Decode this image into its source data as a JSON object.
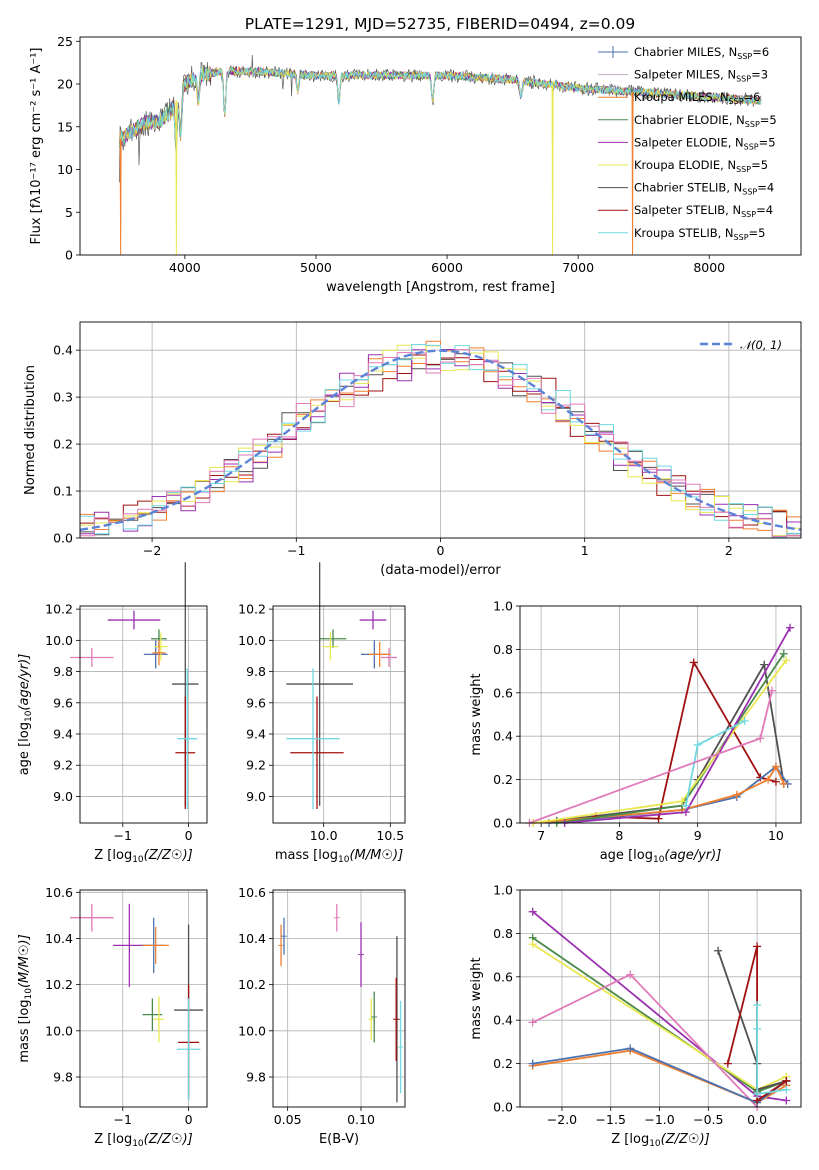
{
  "figure_title": "PLATE=1291, MJD=52735, FIBERID=0494, z=0.09",
  "colors": [
    "#4c72b0",
    "#c8a8c8",
    "#f08030",
    "#4a8a4a",
    "#9b30b0",
    "#e8e850",
    "#505050",
    "#a01010",
    "#70d8e0"
  ],
  "chart_data": [
    {
      "id": "spectrum",
      "type": "line",
      "title": "PLATE=1291, MJD=52735, FIBERID=0494, z=0.09",
      "xlabel": "wavelength [Angstrom, rest frame]",
      "ylabel": "Flux [f_λ10^-17 erg cm^-2 s^-1 A^-1]",
      "xlim": [
        3200,
        8700
      ],
      "ylim": [
        0,
        25.5
      ],
      "x_ticks": [
        "4000",
        "5000",
        "6000",
        "7000",
        "8000"
      ],
      "y_ticks": [
        "0",
        "5",
        "10",
        "15",
        "20",
        "25"
      ],
      "grid": false,
      "legend": "upper right",
      "series": [
        {
          "name": "Chabrier MILES, N_SSP=6",
          "color": "#4c72b0"
        },
        {
          "name": "Salpeter MILES, N_SSP=3",
          "color": "#c8a8c8"
        },
        {
          "name": "Kroupa MILES, N_SSP=6",
          "color": "#f08030"
        },
        {
          "name": "Chabrier ELODIE, N_SSP=5",
          "color": "#4a8a4a"
        },
        {
          "name": "Salpeter ELODIE, N_SSP=5",
          "color": "#9b30b0"
        },
        {
          "name": "Kroupa ELODIE, N_SSP=5",
          "color": "#e8e850"
        },
        {
          "name": "Chabrier STELIB, N_SSP=4",
          "color": "#505050"
        },
        {
          "name": "Salpeter STELIB, N_SSP=4",
          "color": "#a01010"
        },
        {
          "name": "Kroupa STELIB, N_SSP=5",
          "color": "#70d8e0"
        }
      ],
      "continuum": {
        "x": [
          3500,
          3600,
          3700,
          3800,
          3900,
          4000,
          4100,
          4300,
          4500,
          5000,
          5500,
          6000,
          6500,
          7000,
          7500,
          8000,
          8400
        ],
        "y": [
          13.5,
          14.5,
          15.5,
          15.5,
          17,
          20,
          21,
          21.5,
          21.5,
          21,
          21,
          21,
          20.5,
          19.5,
          19,
          18.5,
          18
        ]
      },
      "absorptions": [
        {
          "x": 3934,
          "depth": 5
        },
        {
          "x": 3968,
          "depth": 5
        },
        {
          "x": 4102,
          "depth": 3
        },
        {
          "x": 4304,
          "depth": 5
        },
        {
          "x": 4861,
          "depth": 2
        },
        {
          "x": 5175,
          "depth": 3
        },
        {
          "x": 5890,
          "depth": 3
        },
        {
          "x": 6563,
          "depth": 2
        }
      ],
      "drops_to_zero": [
        {
          "x": 3510,
          "color": "#f08030"
        },
        {
          "x": 3935,
          "color": "#e8e850"
        },
        {
          "x": 6805,
          "color": "#e8e850"
        },
        {
          "x": 7415,
          "color": "#f08030"
        }
      ]
    },
    {
      "id": "residuals",
      "type": "line",
      "xlabel": "(data-model)/error",
      "ylabel": "Normed distribution",
      "xlim": [
        -2.5,
        2.5
      ],
      "ylim": [
        0,
        0.46
      ],
      "x_ticks": [
        "−2",
        "−1",
        "0",
        "1",
        "2"
      ],
      "y_ticks": [
        "0.0",
        "0.1",
        "0.2",
        "0.3",
        "0.4"
      ],
      "grid": true,
      "legend": "upper right",
      "gaussian_label": "𝒩(0, 1)",
      "gaussian_color": "#5b84d6",
      "bin_width": 0.1,
      "hist_series": [
        {
          "color": "#505050",
          "offset": 0.012
        },
        {
          "color": "#a01010",
          "offset": 0.018
        },
        {
          "color": "#f08030",
          "offset": 0.015
        },
        {
          "color": "#9b30b0",
          "offset": 0.02
        },
        {
          "color": "#e8e850",
          "offset": 0.017
        },
        {
          "color": "#70d8e0",
          "offset": 0.016
        },
        {
          "color": "#e07ab8",
          "offset": 0.019
        }
      ]
    },
    {
      "id": "age-vs-Z",
      "type": "scatter",
      "xlabel": "Z [log10(Z/Z☉)]",
      "ylabel": "age  [log10(age/yr)]",
      "xlim": [
        -1.65,
        0.28
      ],
      "ylim": [
        8.83,
        10.22
      ],
      "x_ticks": [
        {
          "v": -1,
          "t": "−1"
        },
        {
          "v": 0,
          "t": "0"
        }
      ],
      "y_ticks": [
        {
          "v": 9.0,
          "t": "9.0"
        },
        {
          "v": 9.2,
          "t": "9.2"
        },
        {
          "v": 9.4,
          "t": "9.4"
        },
        {
          "v": 9.6,
          "t": "9.6"
        },
        {
          "v": 9.8,
          "t": "9.8"
        },
        {
          "v": 10.0,
          "t": "10.0"
        },
        {
          "v": 10.2,
          "t": "10.2"
        }
      ],
      "points": [
        {
          "x": -1.47,
          "y": 9.89,
          "xerr": 0.33,
          "yerr": 0.06,
          "color": "#e07ab8"
        },
        {
          "x": -0.83,
          "y": 10.13,
          "xerr": 0.4,
          "yerr": 0.06,
          "color": "#9b30b0"
        },
        {
          "x": -0.5,
          "y": 9.91,
          "xerr": 0.18,
          "yerr": 0.09,
          "color": "#4c72b0"
        },
        {
          "x": -0.45,
          "y": 10.01,
          "xerr": 0.12,
          "yerr": 0.06,
          "color": "#4a8a4a"
        },
        {
          "x": -0.42,
          "y": 9.96,
          "xerr": 0.1,
          "yerr": 0.09,
          "color": "#e8e850"
        },
        {
          "x": -0.45,
          "y": 9.92,
          "xerr": 0.1,
          "yerr": 0.08,
          "color": "#f08030"
        },
        {
          "x": -0.05,
          "y": 9.72,
          "xerr": 0.2,
          "yerr": 0.78,
          "color": "#505050"
        },
        {
          "x": -0.05,
          "y": 9.28,
          "xerr": 0.15,
          "yerr": 0.36,
          "color": "#a01010"
        },
        {
          "x": -0.02,
          "y": 9.37,
          "xerr": 0.15,
          "yerr": 0.45,
          "color": "#70d8e0"
        }
      ]
    },
    {
      "id": "age-vs-mass",
      "type": "scatter",
      "xlabel": "mass [log10(M/M☉)]",
      "ylabel": "",
      "xlim": [
        9.62,
        10.61
      ],
      "ylim": [
        8.83,
        10.22
      ],
      "x_ticks": [
        {
          "v": 10.0,
          "t": "10.0"
        },
        {
          "v": 10.5,
          "t": "10.5"
        }
      ],
      "y_ticks": [
        {
          "v": 9.0,
          "t": "9.0"
        },
        {
          "v": 9.2,
          "t": "9.2"
        },
        {
          "v": 9.4,
          "t": "9.4"
        },
        {
          "v": 9.6,
          "t": "9.6"
        },
        {
          "v": 9.8,
          "t": "9.8"
        },
        {
          "v": 10.0,
          "t": "10.0"
        },
        {
          "v": 10.2,
          "t": "10.2"
        }
      ],
      "points": [
        {
          "x": 10.49,
          "y": 9.89,
          "xerr": 0.06,
          "yerr": 0.06,
          "color": "#e07ab8"
        },
        {
          "x": 10.37,
          "y": 10.13,
          "xerr": 0.1,
          "yerr": 0.06,
          "color": "#9b30b0"
        },
        {
          "x": 10.38,
          "y": 9.91,
          "xerr": 0.1,
          "yerr": 0.09,
          "color": "#4c72b0"
        },
        {
          "x": 10.07,
          "y": 10.01,
          "xerr": 0.1,
          "yerr": 0.06,
          "color": "#4a8a4a"
        },
        {
          "x": 10.05,
          "y": 9.96,
          "xerr": 0.06,
          "yerr": 0.09,
          "color": "#e8e850"
        },
        {
          "x": 10.42,
          "y": 9.91,
          "xerr": 0.08,
          "yerr": 0.08,
          "color": "#f08030"
        },
        {
          "x": 9.97,
          "y": 9.72,
          "xerr": 0.25,
          "yerr": 0.78,
          "color": "#505050"
        },
        {
          "x": 9.95,
          "y": 9.28,
          "xerr": 0.2,
          "yerr": 0.36,
          "color": "#a01010"
        },
        {
          "x": 9.92,
          "y": 9.37,
          "xerr": 0.2,
          "yerr": 0.45,
          "color": "#70d8e0"
        }
      ]
    },
    {
      "id": "massweight-vs-age",
      "type": "line",
      "xlabel": "age  [log10(age/yr)]",
      "ylabel": "mass weight",
      "xlim": [
        6.73,
        10.32
      ],
      "ylim": [
        0,
        1
      ],
      "x_ticks": [
        {
          "v": 7,
          "t": "7"
        },
        {
          "v": 8,
          "t": "8"
        },
        {
          "v": 9,
          "t": "9"
        },
        {
          "v": 10,
          "t": "10"
        }
      ],
      "y_ticks": [
        {
          "v": 0,
          "t": "0.0"
        },
        {
          "v": 0.2,
          "t": "0.2"
        },
        {
          "v": 0.4,
          "t": "0.4"
        },
        {
          "v": 0.6,
          "t": "0.6"
        },
        {
          "v": 0.8,
          "t": "0.8"
        },
        {
          "v": 1.0,
          "t": "1.0"
        }
      ],
      "series": [
        {
          "color": "#505050",
          "x": [
            7.2,
            8.8,
            9.0,
            9.85,
            10.1
          ],
          "y": [
            0.01,
            0.08,
            0.2,
            0.73,
            0.18
          ]
        },
        {
          "color": "#a01010",
          "x": [
            7.7,
            8.5,
            8.95,
            9.8,
            10.0
          ],
          "y": [
            0.03,
            0.02,
            0.74,
            0.21,
            0.19
          ]
        },
        {
          "color": "#4c72b0",
          "x": [
            7.1,
            8.8,
            9.5,
            10.0,
            10.15
          ],
          "y": [
            0.0,
            0.06,
            0.12,
            0.26,
            0.18
          ]
        },
        {
          "color": "#f08030",
          "x": [
            6.9,
            8.8,
            9.5,
            9.9,
            10.0,
            10.1
          ],
          "y": [
            0.0,
            0.06,
            0.13,
            0.2,
            0.26,
            0.18
          ]
        },
        {
          "color": "#4a8a4a",
          "x": [
            7.2,
            8.8,
            10.1
          ],
          "y": [
            0.0,
            0.08,
            0.78
          ]
        },
        {
          "color": "#e8e850",
          "x": [
            6.9,
            8.8,
            10.13
          ],
          "y": [
            0.0,
            0.1,
            0.75
          ]
        },
        {
          "color": "#9b30b0",
          "x": [
            7.3,
            8.85,
            10.18
          ],
          "y": [
            0.0,
            0.05,
            0.9
          ]
        },
        {
          "color": "#70d8e0",
          "x": [
            8.85,
            9.0,
            9.6
          ],
          "y": [
            0.08,
            0.36,
            0.47
          ]
        },
        {
          "color": "#e07ab8",
          "x": [
            6.85,
            9.8,
            9.95
          ],
          "y": [
            0.0,
            0.39,
            0.61
          ]
        }
      ]
    },
    {
      "id": "mass-vs-Z",
      "type": "scatter",
      "xlabel": "Z [log10(Z/Z☉)]",
      "ylabel": "mass [log10(M/M☉)]",
      "xlim": [
        -1.65,
        0.28
      ],
      "ylim": [
        9.67,
        10.61
      ],
      "x_ticks": [
        {
          "v": -1,
          "t": "−1"
        },
        {
          "v": 0,
          "t": "0"
        }
      ],
      "y_ticks": [
        {
          "v": 9.8,
          "t": "9.8"
        },
        {
          "v": 10.0,
          "t": "10.0"
        },
        {
          "v": 10.2,
          "t": "10.2"
        },
        {
          "v": 10.4,
          "t": "10.4"
        },
        {
          "v": 10.6,
          "t": "10.6"
        }
      ],
      "points": [
        {
          "x": -1.47,
          "y": 10.49,
          "xerr": 0.33,
          "yerr": 0.06,
          "color": "#e07ab8"
        },
        {
          "x": -0.9,
          "y": 10.37,
          "xerr": 0.25,
          "yerr": 0.18,
          "color": "#9b30b0"
        },
        {
          "x": -0.53,
          "y": 10.37,
          "xerr": 0.18,
          "yerr": 0.12,
          "color": "#4c72b0"
        },
        {
          "x": -0.55,
          "y": 10.07,
          "xerr": 0.15,
          "yerr": 0.07,
          "color": "#4a8a4a"
        },
        {
          "x": -0.45,
          "y": 10.05,
          "xerr": 0.08,
          "yerr": 0.1,
          "color": "#e8e850"
        },
        {
          "x": -0.5,
          "y": 10.37,
          "xerr": 0.2,
          "yerr": 0.08,
          "color": "#f08030"
        },
        {
          "x": 0.0,
          "y": 10.09,
          "xerr": 0.22,
          "yerr": 0.37,
          "color": "#505050"
        },
        {
          "x": 0.0,
          "y": 9.95,
          "xerr": 0.16,
          "yerr": 0.25,
          "color": "#a01010"
        },
        {
          "x": 0.0,
          "y": 9.92,
          "xerr": 0.18,
          "yerr": 0.22,
          "color": "#70d8e0"
        }
      ]
    },
    {
      "id": "mass-vs-EBV",
      "type": "scatter",
      "xlabel": "E(B-V)",
      "ylabel": "",
      "xlim": [
        0.04,
        0.13
      ],
      "ylim": [
        9.67,
        10.61
      ],
      "x_ticks": [
        {
          "v": 0.05,
          "t": "0.05"
        },
        {
          "v": 0.1,
          "t": "0.10"
        }
      ],
      "y_ticks": [
        {
          "v": 9.8,
          "t": "9.8"
        },
        {
          "v": 10.0,
          "t": "10.0"
        },
        {
          "v": 10.2,
          "t": "10.2"
        },
        {
          "v": 10.4,
          "t": "10.4"
        },
        {
          "v": 10.6,
          "t": "10.6"
        }
      ],
      "points": [
        {
          "x": 0.0455,
          "y": 10.37,
          "xerr": 0.0,
          "yerr": 0.09,
          "color": "#f08030"
        },
        {
          "x": 0.0475,
          "y": 10.41,
          "xerr": 0.0,
          "yerr": 0.08,
          "color": "#4c72b0"
        },
        {
          "x": 0.0835,
          "y": 10.49,
          "xerr": 0.0,
          "yerr": 0.06,
          "color": "#e07ab8"
        },
        {
          "x": 0.1,
          "y": 10.33,
          "xerr": 0.0,
          "yerr": 0.14,
          "color": "#9b30b0"
        },
        {
          "x": 0.107,
          "y": 10.05,
          "xerr": 0.0,
          "yerr": 0.09,
          "color": "#e8e850"
        },
        {
          "x": 0.109,
          "y": 10.06,
          "xerr": 0.0,
          "yerr": 0.11,
          "color": "#4a8a4a"
        },
        {
          "x": 0.1245,
          "y": 10.05,
          "xerr": 0.0,
          "yerr": 0.36,
          "color": "#505050"
        },
        {
          "x": 0.124,
          "y": 10.05,
          "xerr": 0.0,
          "yerr": 0.18,
          "color": "#a01010"
        },
        {
          "x": 0.127,
          "y": 9.93,
          "xerr": 0.0,
          "yerr": 0.2,
          "color": "#70d8e0"
        }
      ]
    },
    {
      "id": "massweight-vs-Z",
      "type": "line",
      "xlabel": "Z [log10(Z/Z☉)]",
      "ylabel": "mass weight",
      "xlim": [
        -2.43,
        0.45
      ],
      "ylim": [
        0,
        1
      ],
      "x_ticks": [
        {
          "v": -2.0,
          "t": "−2.0"
        },
        {
          "v": -1.5,
          "t": "−1.5"
        },
        {
          "v": -1.0,
          "t": "−1.0"
        },
        {
          "v": -0.5,
          "t": "−0.5"
        },
        {
          "v": 0.0,
          "t": "0.0"
        }
      ],
      "y_ticks": [
        {
          "v": 0,
          "t": "0.0"
        },
        {
          "v": 0.2,
          "t": "0.2"
        },
        {
          "v": 0.4,
          "t": "0.4"
        },
        {
          "v": 0.6,
          "t": "0.6"
        },
        {
          "v": 0.8,
          "t": "0.8"
        },
        {
          "v": 1.0,
          "t": "1.0"
        }
      ],
      "series": [
        {
          "color": "#9b30b0",
          "x": [
            -2.3,
            0.0,
            0.3
          ],
          "y": [
            0.9,
            0.05,
            0.03
          ]
        },
        {
          "color": "#4a8a4a",
          "x": [
            -2.3,
            0.0,
            0.3
          ],
          "y": [
            0.78,
            0.07,
            0.12
          ]
        },
        {
          "color": "#e8e850",
          "x": [
            -2.3,
            0.0,
            0.3
          ],
          "y": [
            0.75,
            0.08,
            0.14
          ]
        },
        {
          "color": "#e07ab8",
          "x": [
            -2.3,
            -1.3,
            0.0
          ],
          "y": [
            0.39,
            0.61,
            0.0
          ]
        },
        {
          "color": "#f08030",
          "x": [
            -2.3,
            -1.3,
            0.0,
            0.3
          ],
          "y": [
            0.19,
            0.26,
            0.02,
            0.1
          ]
        },
        {
          "color": "#4c72b0",
          "x": [
            -2.3,
            -1.3,
            0.0,
            0.3
          ],
          "y": [
            0.2,
            0.27,
            0.02,
            0.12
          ]
        },
        {
          "color": "#505050",
          "x": [
            -0.4,
            0.0,
            0.0,
            0.3
          ],
          "y": [
            0.72,
            0.2,
            0.08,
            0.12
          ]
        },
        {
          "color": "#a01010",
          "x": [
            -0.3,
            0.0,
            0.0,
            0.3
          ],
          "y": [
            0.2,
            0.74,
            0.03,
            0.12
          ]
        },
        {
          "color": "#70d8e0",
          "x": [
            0.0,
            0.0,
            0.0,
            0.3
          ],
          "y": [
            0.47,
            0.36,
            0.06,
            0.08
          ]
        }
      ]
    }
  ]
}
